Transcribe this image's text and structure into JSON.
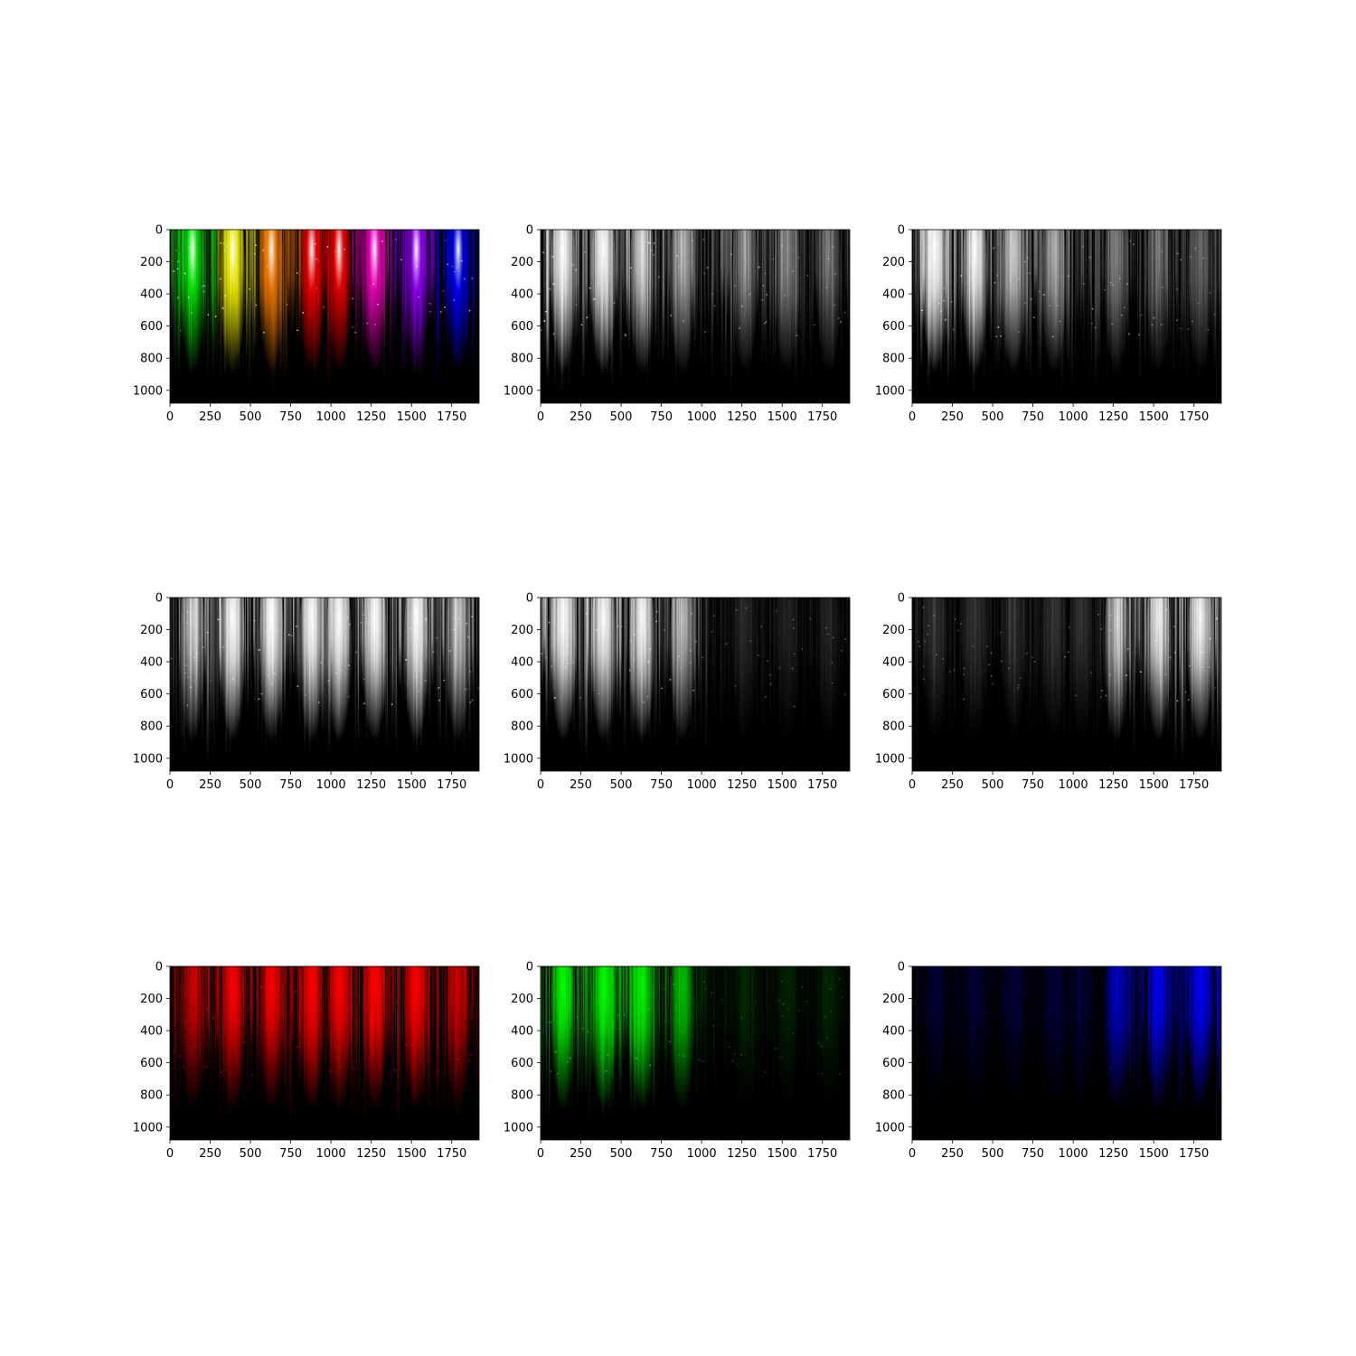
{
  "chart_data": [
    {
      "type": "heatmap",
      "panel": "rgb-composite",
      "colors": [
        "#00ff00",
        "#ffff00",
        "#ff8000",
        "#ff0000",
        "#ff00c8",
        "#9600ff",
        "#0000ff"
      ],
      "bright_columns": [
        140,
        390,
        630,
        880,
        1050,
        1270,
        1530,
        1790
      ],
      "x_ticks": [
        0,
        250,
        500,
        750,
        1000,
        1250,
        1500,
        1750
      ],
      "y_ticks": [
        0,
        200,
        400,
        600,
        800,
        1000
      ],
      "xlim": [
        0,
        1920
      ],
      "ylim": [
        1080,
        0
      ]
    },
    {
      "type": "heatmap",
      "panel": "grayscale",
      "colors": [
        "#ffffff"
      ],
      "brightness_profile": [
        [
          0,
          1.0
        ],
        [
          400,
          0.95
        ],
        [
          700,
          0.7
        ],
        [
          1000,
          0.55
        ],
        [
          1500,
          0.45
        ],
        [
          1920,
          0.35
        ]
      ],
      "bright_columns": [
        140,
        390,
        630,
        880,
        1270,
        1530,
        1790
      ],
      "x_ticks": [
        0,
        250,
        500,
        750,
        1000,
        1250,
        1500,
        1750
      ],
      "y_ticks": [
        0,
        200,
        400,
        600,
        800,
        1000
      ],
      "xlim": [
        0,
        1920
      ],
      "ylim": [
        1080,
        0
      ]
    },
    {
      "type": "heatmap",
      "panel": "grayscale",
      "colors": [
        "#ffffff"
      ],
      "brightness_profile": [
        [
          0,
          1.0
        ],
        [
          400,
          0.95
        ],
        [
          700,
          0.7
        ],
        [
          1000,
          0.5
        ],
        [
          1500,
          0.35
        ],
        [
          1920,
          0.3
        ]
      ],
      "bright_columns": [
        140,
        390,
        630,
        880,
        1270,
        1530,
        1790
      ],
      "x_ticks": [
        0,
        250,
        500,
        750,
        1000,
        1250,
        1500,
        1750
      ],
      "y_ticks": [
        0,
        200,
        400,
        600,
        800,
        1000
      ],
      "xlim": [
        0,
        1920
      ],
      "ylim": [
        1080,
        0
      ]
    },
    {
      "type": "heatmap",
      "panel": "grayscale",
      "colors": [
        "#ffffff"
      ],
      "brightness_profile": [
        [
          0,
          0.5
        ],
        [
          300,
          0.95
        ],
        [
          1600,
          0.95
        ],
        [
          1920,
          0.5
        ]
      ],
      "bright_columns": [
        140,
        390,
        630,
        880,
        1050,
        1270,
        1530,
        1790
      ],
      "x_ticks": [
        0,
        250,
        500,
        750,
        1000,
        1250,
        1500,
        1750
      ],
      "y_ticks": [
        0,
        200,
        400,
        600,
        800,
        1000
      ],
      "xlim": [
        0,
        1920
      ],
      "ylim": [
        1080,
        0
      ]
    },
    {
      "type": "heatmap",
      "panel": "grayscale",
      "colors": [
        "#ffffff"
      ],
      "brightness_profile": [
        [
          0,
          1.0
        ],
        [
          600,
          0.95
        ],
        [
          950,
          0.6
        ],
        [
          1050,
          0.12
        ],
        [
          1920,
          0.1
        ]
      ],
      "bright_columns": [
        140,
        390,
        630,
        880,
        1270,
        1530,
        1790
      ],
      "x_ticks": [
        0,
        250,
        500,
        750,
        1000,
        1250,
        1500,
        1750
      ],
      "y_ticks": [
        0,
        200,
        400,
        600,
        800,
        1000
      ],
      "xlim": [
        0,
        1920
      ],
      "ylim": [
        1080,
        0
      ]
    },
    {
      "type": "heatmap",
      "panel": "grayscale",
      "colors": [
        "#ffffff"
      ],
      "brightness_profile": [
        [
          0,
          0.15
        ],
        [
          1150,
          0.15
        ],
        [
          1300,
          0.8
        ],
        [
          1920,
          0.95
        ]
      ],
      "bright_columns": [
        140,
        390,
        630,
        880,
        1050,
        1270,
        1530,
        1790
      ],
      "x_ticks": [
        0,
        250,
        500,
        750,
        1000,
        1250,
        1500,
        1750
      ],
      "y_ticks": [
        0,
        200,
        400,
        600,
        800,
        1000
      ],
      "xlim": [
        0,
        1920
      ],
      "ylim": [
        1080,
        0
      ]
    },
    {
      "type": "heatmap",
      "panel": "red-channel",
      "colors": [
        "#ff0000"
      ],
      "brightness_profile": [
        [
          0,
          0.5
        ],
        [
          300,
          0.95
        ],
        [
          1600,
          0.95
        ],
        [
          1920,
          0.5
        ]
      ],
      "bright_columns": [
        140,
        390,
        630,
        880,
        1050,
        1270,
        1530,
        1790
      ],
      "x_ticks": [
        0,
        250,
        500,
        750,
        1000,
        1250,
        1500,
        1750
      ],
      "y_ticks": [
        0,
        200,
        400,
        600,
        800,
        1000
      ],
      "xlim": [
        0,
        1920
      ],
      "ylim": [
        1080,
        0
      ]
    },
    {
      "type": "heatmap",
      "panel": "green-channel",
      "colors": [
        "#00ff00"
      ],
      "brightness_profile": [
        [
          0,
          1.0
        ],
        [
          600,
          0.95
        ],
        [
          950,
          0.6
        ],
        [
          1050,
          0.12
        ],
        [
          1920,
          0.1
        ]
      ],
      "bright_columns": [
        140,
        390,
        630,
        880,
        1270,
        1530,
        1790
      ],
      "x_ticks": [
        0,
        250,
        500,
        750,
        1000,
        1250,
        1500,
        1750
      ],
      "y_ticks": [
        0,
        200,
        400,
        600,
        800,
        1000
      ],
      "xlim": [
        0,
        1920
      ],
      "ylim": [
        1080,
        0
      ]
    },
    {
      "type": "heatmap",
      "panel": "blue-channel",
      "colors": [
        "#0000ff"
      ],
      "brightness_profile": [
        [
          0,
          0.15
        ],
        [
          1150,
          0.15
        ],
        [
          1300,
          0.8
        ],
        [
          1920,
          0.95
        ]
      ],
      "bright_columns": [
        140,
        390,
        630,
        880,
        1050,
        1270,
        1530,
        1790
      ],
      "x_ticks": [
        0,
        250,
        500,
        750,
        1000,
        1250,
        1500,
        1750
      ],
      "y_ticks": [
        0,
        200,
        400,
        600,
        800,
        1000
      ],
      "xlim": [
        0,
        1920
      ],
      "ylim": [
        1080,
        0
      ]
    }
  ]
}
